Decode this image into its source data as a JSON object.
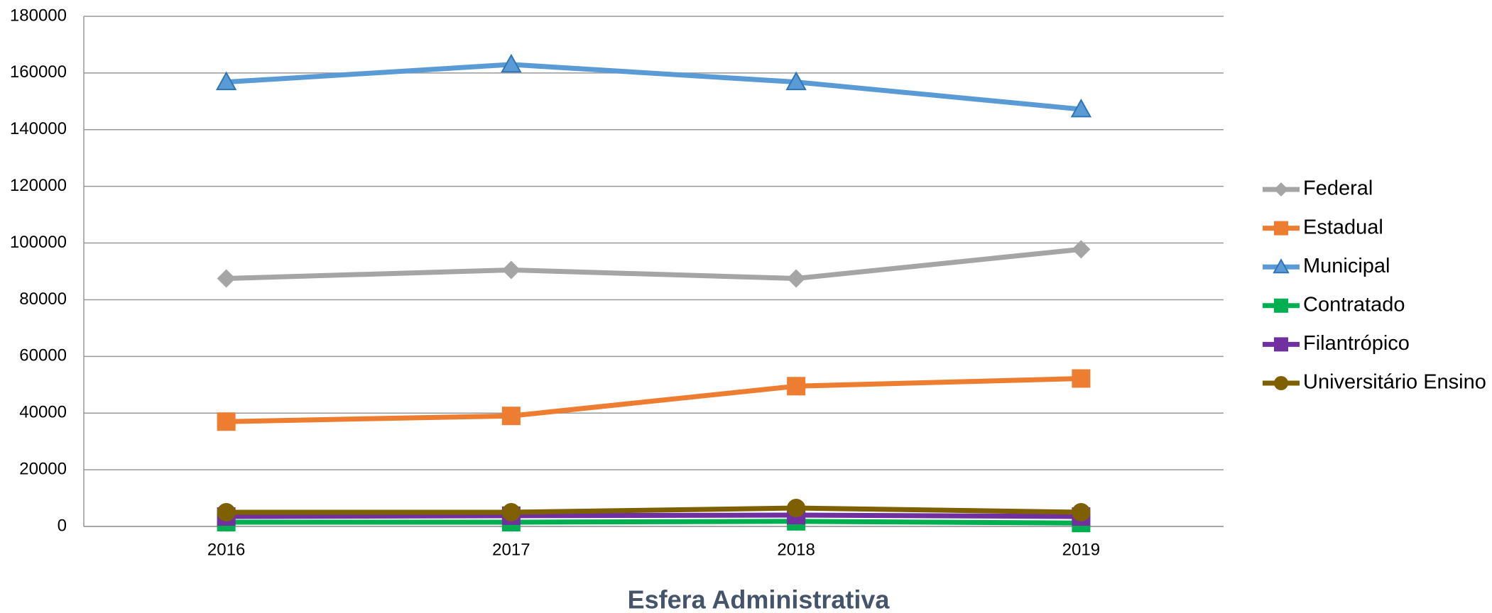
{
  "chart_data": {
    "type": "line",
    "x_label": "Esfera Administrativa",
    "categories": [
      "2016",
      "2017",
      "2018",
      "2019"
    ],
    "series": [
      {
        "name": "Federal",
        "color": "#a5a5a5",
        "marker": "diamond",
        "values": [
          87500,
          90500,
          87500,
          97800
        ]
      },
      {
        "name": "Estadual",
        "color": "#ed7d31",
        "marker": "square",
        "values": [
          37000,
          39000,
          49500,
          52200
        ]
      },
      {
        "name": "Municipal",
        "color": "#5b9bd5",
        "marker": "triangle",
        "values": [
          156800,
          163000,
          156800,
          147200
        ]
      },
      {
        "name": "Contratado",
        "color": "#00b050",
        "marker": "square",
        "values": [
          1500,
          1500,
          1800,
          1200
        ]
      },
      {
        "name": "Filantrópico",
        "color": "#7030a0",
        "marker": "square",
        "values": [
          3500,
          3800,
          4000,
          3500
        ]
      },
      {
        "name": "Universitário Ensino",
        "color": "#7f6000",
        "marker": "circle",
        "values": [
          5000,
          5000,
          6500,
          5000
        ]
      }
    ],
    "ylim": [
      0,
      180000
    ],
    "yticks": [
      0,
      20000,
      40000,
      60000,
      80000,
      100000,
      120000,
      140000,
      160000,
      180000
    ],
    "grid": true,
    "legend": "right"
  }
}
